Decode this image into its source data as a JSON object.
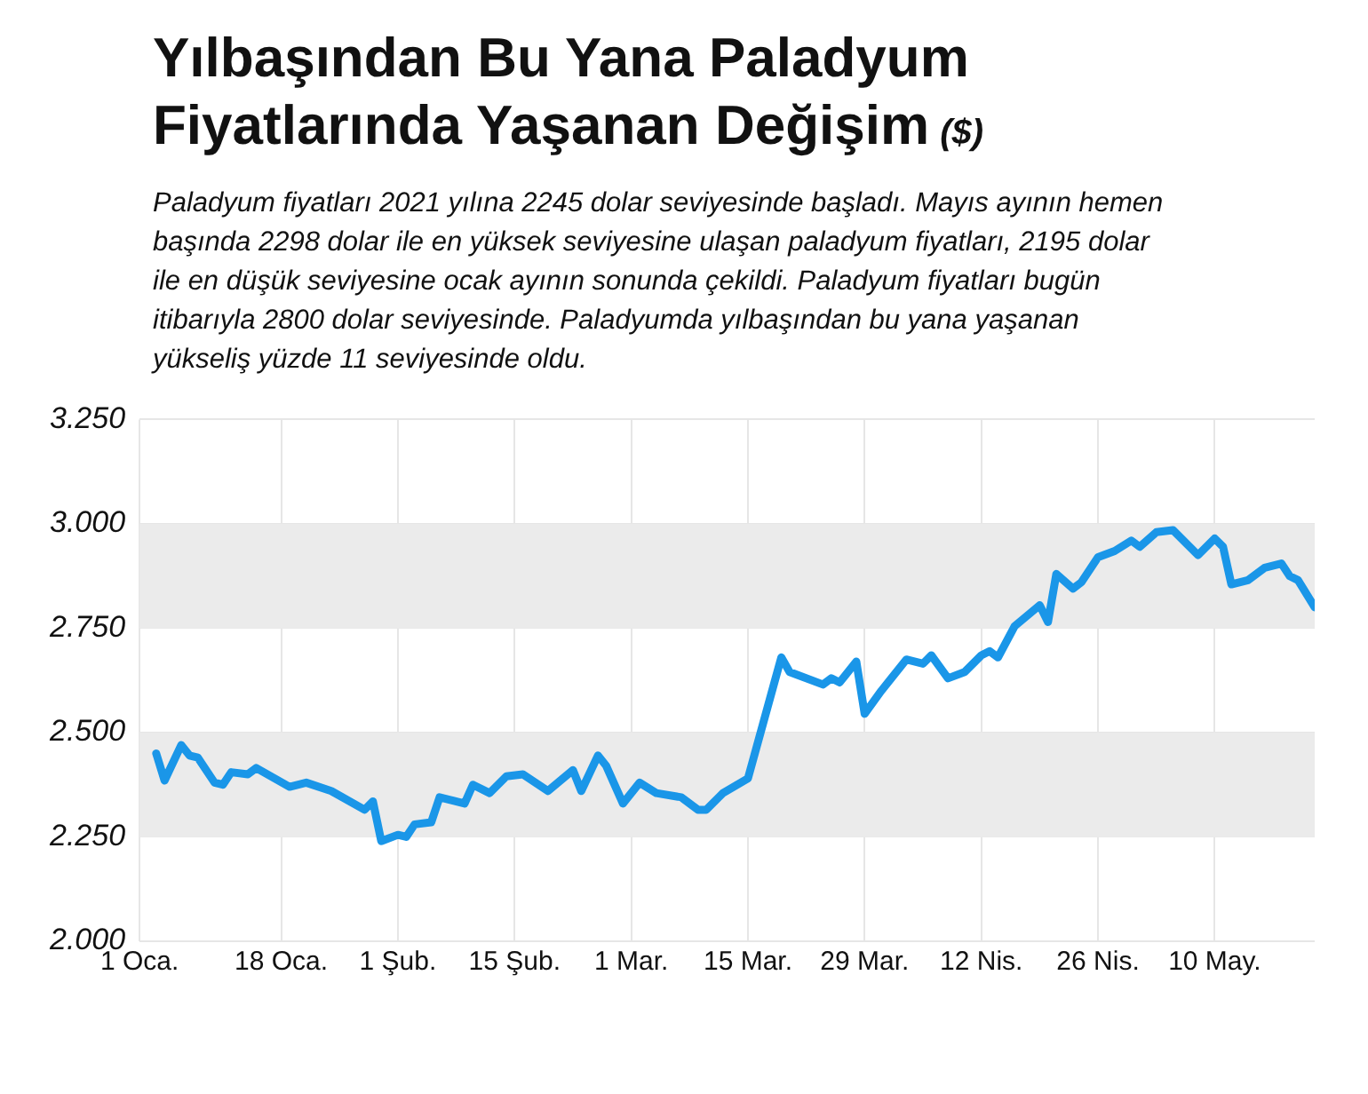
{
  "chart_data": {
    "type": "line",
    "title": "Yılbaşından Bu Yana Paladyum Fiyatlarında Yaşanan Değişim",
    "annotations": [
      "($)"
    ],
    "subtitle": "Paladyum fiyatları 2021 yılına 2245 dolar seviyesinde başladı. Mayıs ayının hemen başında 2298 dolar ile en yüksek seviyesine ulaşan paladyum fiyatları, 2195 dolar ile en düşük seviyesine ocak ayının sonunda çekildi. Paladyum fiyatları bugün itibarıyla 2800 dolar seviyesinde. Paladyumda yılbaşından bu yana yaşanan yükseliş yüzde 11 seviyesinde oldu.",
    "x": [
      "2021-01-03",
      "2021-01-04",
      "2021-01-06",
      "2021-01-07",
      "2021-01-08",
      "2021-01-10",
      "2021-01-11",
      "2021-01-12",
      "2021-01-14",
      "2021-01-15",
      "2021-01-19",
      "2021-01-21",
      "2021-01-24",
      "2021-01-28",
      "2021-01-29",
      "2021-01-30",
      "2021-02-01",
      "2021-02-02",
      "2021-02-03",
      "2021-02-05",
      "2021-02-06",
      "2021-02-09",
      "2021-02-10",
      "2021-02-12",
      "2021-02-14",
      "2021-02-16",
      "2021-02-19",
      "2021-02-22",
      "2021-02-23",
      "2021-02-25",
      "2021-02-26",
      "2021-02-28",
      "2021-03-02",
      "2021-03-04",
      "2021-03-07",
      "2021-03-09",
      "2021-03-10",
      "2021-03-12",
      "2021-03-15",
      "2021-03-19",
      "2021-03-20",
      "2021-03-24",
      "2021-03-25",
      "2021-03-26",
      "2021-03-28",
      "2021-03-29",
      "2021-03-31",
      "2021-04-03",
      "2021-04-05",
      "2021-04-06",
      "2021-04-08",
      "2021-04-10",
      "2021-04-12",
      "2021-04-13",
      "2021-04-14",
      "2021-04-16",
      "2021-04-19",
      "2021-04-20",
      "2021-04-21",
      "2021-04-23",
      "2021-04-24",
      "2021-04-26",
      "2021-04-28",
      "2021-04-30",
      "2021-05-01",
      "2021-05-03",
      "2021-05-05",
      "2021-05-08",
      "2021-05-10",
      "2021-05-11",
      "2021-05-12",
      "2021-05-14",
      "2021-05-16",
      "2021-05-18",
      "2021-05-19",
      "2021-05-20",
      "2021-05-22"
    ],
    "series": [
      {
        "color": "#1a96e8",
        "values": [
          2450,
          2385,
          2470,
          2445,
          2440,
          2380,
          2375,
          2405,
          2400,
          2415,
          2370,
          2380,
          2360,
          2315,
          2335,
          2240,
          2255,
          2250,
          2280,
          2285,
          2345,
          2330,
          2375,
          2355,
          2395,
          2400,
          2360,
          2410,
          2360,
          2445,
          2420,
          2330,
          2380,
          2355,
          2345,
          2315,
          2315,
          2355,
          2390,
          2680,
          2645,
          2615,
          2630,
          2620,
          2670,
          2545,
          2600,
          2675,
          2665,
          2685,
          2630,
          2645,
          2685,
          2695,
          2680,
          2755,
          2805,
          2765,
          2880,
          2845,
          2860,
          2920,
          2935,
          2960,
          2945,
          2980,
          2985,
          2925,
          2965,
          2945,
          2855,
          2865,
          2895,
          2905,
          2875,
          2865,
          2800
        ]
      }
    ],
    "xlim": [
      "2021-01-01",
      "2021-05-22"
    ],
    "xticks": [
      {
        "value": "2021-01-01",
        "label": "1 Oca."
      },
      {
        "value": "2021-01-18",
        "label": "18 Oca."
      },
      {
        "value": "2021-02-01",
        "label": "1 Şub."
      },
      {
        "value": "2021-02-15",
        "label": "15 Şub."
      },
      {
        "value": "2021-03-01",
        "label": "1 Mar."
      },
      {
        "value": "2021-03-15",
        "label": "15 Mar."
      },
      {
        "value": "2021-03-29",
        "label": "29 Mar."
      },
      {
        "value": "2021-04-12",
        "label": "12 Nis."
      },
      {
        "value": "2021-04-26",
        "label": "26 Nis."
      },
      {
        "value": "2021-05-10",
        "label": "10 May."
      }
    ],
    "ylim": [
      2000,
      3250
    ],
    "yticks": [
      {
        "value": 2000,
        "label": "2.000"
      },
      {
        "value": 2250,
        "label": "2.250"
      },
      {
        "value": 2500,
        "label": "2.500"
      },
      {
        "value": 2750,
        "label": "2.750"
      },
      {
        "value": 3000,
        "label": "3.000"
      },
      {
        "value": 3250,
        "label": "3.250"
      }
    ],
    "bands": [
      {
        "axis": "y",
        "from": 2250,
        "to": 2500,
        "color": "#ebebeb"
      },
      {
        "axis": "y",
        "from": 2750,
        "to": 3000,
        "color": "#ebebeb"
      }
    ],
    "grid": true,
    "line_style": "solid"
  }
}
